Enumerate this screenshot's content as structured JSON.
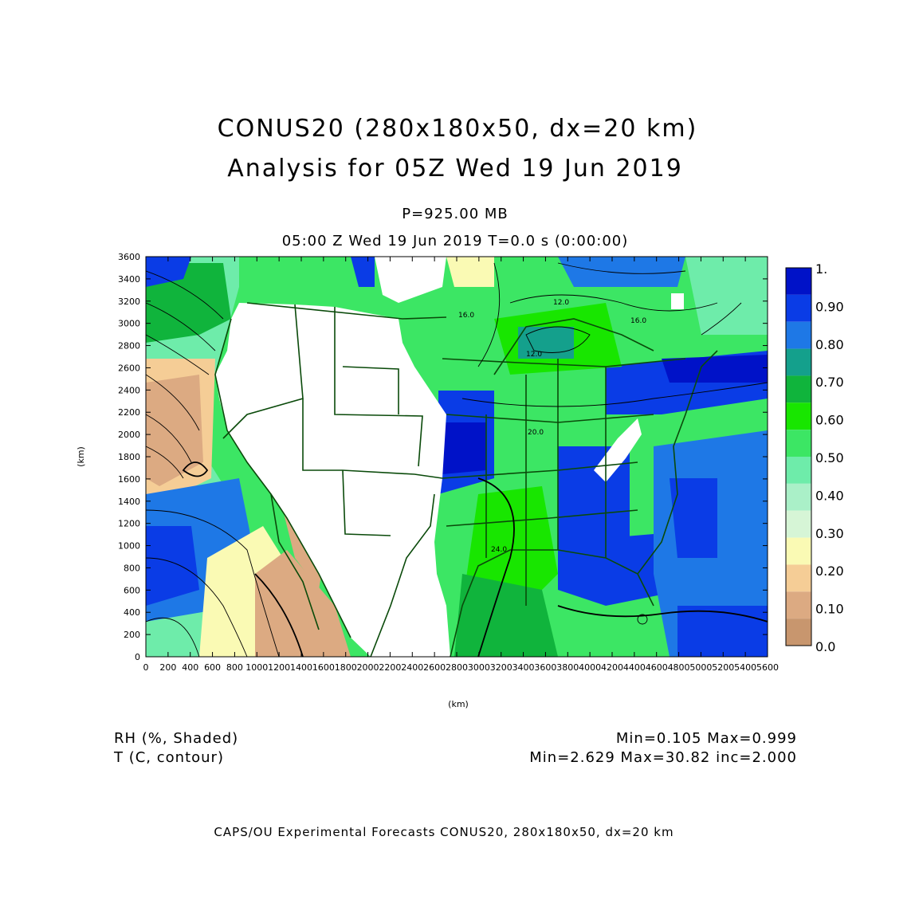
{
  "header": {
    "title_line1": "CONUS20 (280x180x50, dx=20 km)",
    "title_line2": "Analysis for 05Z Wed 19 Jun 2019",
    "level": "P=925.00 MB",
    "valid_time": "05:00 Z Wed 19 Jun 2019    T=0.0 s (0:00:00)"
  },
  "axes": {
    "y_unit": "(km)",
    "x_unit": "(km)",
    "y_ticks": [
      "0",
      "200",
      "400",
      "600",
      "800",
      "1000",
      "1200",
      "1400",
      "1600",
      "1800",
      "2000",
      "2200",
      "2400",
      "2600",
      "2800",
      "3000",
      "3200",
      "3400",
      "3600"
    ],
    "x_ticks": [
      "0",
      "200",
      "400",
      "600",
      "800",
      "1000",
      "1200",
      "1400",
      "1600",
      "1800",
      "2000",
      "2200",
      "2400",
      "2600",
      "2800",
      "3000",
      "3200",
      "3400",
      "3600",
      "3800",
      "4000",
      "4200",
      "4400",
      "4600",
      "4800",
      "5000",
      "5200",
      "5400",
      "5600"
    ]
  },
  "colorbar": {
    "labels": [
      "1.",
      "0.90",
      "0.80",
      "0.70",
      "0.60",
      "0.50",
      "0.40",
      "0.30",
      "0.20",
      "0.10",
      "0.0"
    ],
    "colors": [
      "#0012c8",
      "#0a3ce6",
      "#1e78e6",
      "#14a08c",
      "#10b43c",
      "#18e600",
      "#3ce664",
      "#6eecaa",
      "#aaf0c8",
      "#d6f5d6",
      "#fafab4",
      "#f5cd96",
      "#dcaa82",
      "#c8966e"
    ]
  },
  "contour_labels": [
    "12.0",
    "16.0",
    "16.0",
    "12.0",
    "20.0",
    "24.0"
  ],
  "legend": {
    "shade_label": "RH (%, Shaded)",
    "shade_stats": "Min=0.105 Max=0.999",
    "contour_label": "T (C, contour)",
    "contour_stats": "Min=2.629 Max=30.82 inc=2.000"
  },
  "credit": "CAPS/OU Experimental Forecasts   CONUS20, 280x180x50, dx=20 km"
}
